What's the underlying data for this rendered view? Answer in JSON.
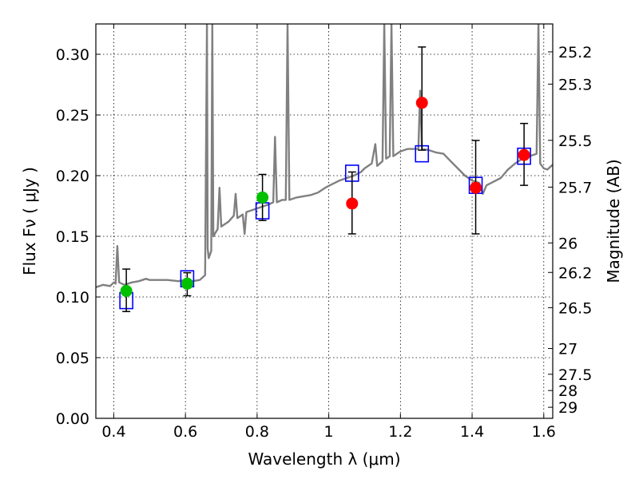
{
  "chart_data": {
    "type": "scatter",
    "xlabel": "Wavelength  λ (μm)",
    "ylabel": "Flux  Fν  ( μJy )",
    "ylabel_right": "Magnitude (AB)",
    "xlim": [
      0.35,
      1.625
    ],
    "ylim": [
      0.0,
      0.325
    ],
    "grid": true,
    "x_ticks": [
      {
        "value": 0.4,
        "label": "0.4"
      },
      {
        "value": 0.6,
        "label": "0.6"
      },
      {
        "value": 0.8,
        "label": "0.8"
      },
      {
        "value": 1.0,
        "label": "1"
      },
      {
        "value": 1.2,
        "label": "1.2"
      },
      {
        "value": 1.4,
        "label": "1.4"
      },
      {
        "value": 1.6,
        "label": "1.6"
      }
    ],
    "y_ticks": [
      {
        "value": 0.0,
        "label": "0.00"
      },
      {
        "value": 0.05,
        "label": "0.05"
      },
      {
        "value": 0.1,
        "label": "0.10"
      },
      {
        "value": 0.15,
        "label": "0.15"
      },
      {
        "value": 0.2,
        "label": "0.20"
      },
      {
        "value": 0.25,
        "label": "0.25"
      },
      {
        "value": 0.3,
        "label": "0.30"
      }
    ],
    "right_ticks": [
      {
        "mag": 25.2,
        "label": "25.2"
      },
      {
        "mag": 25.3,
        "label": "25.3"
      },
      {
        "mag": 25.5,
        "label": "25.5"
      },
      {
        "mag": 25.7,
        "label": "25.7"
      },
      {
        "mag": 26.0,
        "label": "26"
      },
      {
        "mag": 26.2,
        "label": "26.2"
      },
      {
        "mag": 26.5,
        "label": "26.5"
      },
      {
        "mag": 27.0,
        "label": "27"
      },
      {
        "mag": 27.5,
        "label": "27.5"
      },
      {
        "mag": 28.0,
        "label": "28"
      },
      {
        "mag": 29.0,
        "label": "29"
      }
    ],
    "colors": {
      "model": "#808080",
      "optical": "#00c000",
      "infrared": "#ff0000",
      "model_box": "#0000ff",
      "errorbar": "#000000"
    },
    "model_spectrum": [
      [
        0.35,
        0.108
      ],
      [
        0.37,
        0.11
      ],
      [
        0.39,
        0.109
      ],
      [
        0.4,
        0.112
      ],
      [
        0.405,
        0.111
      ],
      [
        0.41,
        0.142
      ],
      [
        0.415,
        0.112
      ],
      [
        0.43,
        0.11
      ],
      [
        0.45,
        0.112
      ],
      [
        0.47,
        0.113
      ],
      [
        0.49,
        0.115
      ],
      [
        0.5,
        0.114
      ],
      [
        0.52,
        0.114
      ],
      [
        0.55,
        0.114
      ],
      [
        0.58,
        0.113
      ],
      [
        0.6,
        0.114
      ],
      [
        0.62,
        0.113
      ],
      [
        0.64,
        0.114
      ],
      [
        0.655,
        0.118
      ],
      [
        0.66,
        0.325
      ],
      [
        0.662,
        0.14
      ],
      [
        0.665,
        0.132
      ],
      [
        0.672,
        0.138
      ],
      [
        0.675,
        0.325
      ],
      [
        0.678,
        0.15
      ],
      [
        0.69,
        0.156
      ],
      [
        0.695,
        0.19
      ],
      [
        0.7,
        0.158
      ],
      [
        0.72,
        0.162
      ],
      [
        0.735,
        0.167
      ],
      [
        0.74,
        0.185
      ],
      [
        0.745,
        0.165
      ],
      [
        0.76,
        0.168
      ],
      [
        0.765,
        0.152
      ],
      [
        0.77,
        0.17
      ],
      [
        0.79,
        0.172
      ],
      [
        0.81,
        0.174
      ],
      [
        0.83,
        0.176
      ],
      [
        0.845,
        0.178
      ],
      [
        0.85,
        0.232
      ],
      [
        0.855,
        0.178
      ],
      [
        0.87,
        0.18
      ],
      [
        0.88,
        0.18
      ],
      [
        0.885,
        0.325
      ],
      [
        0.89,
        0.18
      ],
      [
        0.91,
        0.182
      ],
      [
        0.93,
        0.183
      ],
      [
        0.95,
        0.184
      ],
      [
        0.97,
        0.186
      ],
      [
        0.99,
        0.19
      ],
      [
        1.01,
        0.193
      ],
      [
        1.03,
        0.196
      ],
      [
        1.05,
        0.198
      ],
      [
        1.07,
        0.2
      ],
      [
        1.09,
        0.203
      ],
      [
        1.1,
        0.206
      ],
      [
        1.12,
        0.21
      ],
      [
        1.13,
        0.226
      ],
      [
        1.135,
        0.208
      ],
      [
        1.15,
        0.212
      ],
      [
        1.155,
        0.325
      ],
      [
        1.16,
        0.214
      ],
      [
        1.17,
        0.216
      ],
      [
        1.175,
        0.325
      ],
      [
        1.18,
        0.216
      ],
      [
        1.19,
        0.218
      ],
      [
        1.2,
        0.22
      ],
      [
        1.21,
        0.221
      ],
      [
        1.22,
        0.222
      ],
      [
        1.23,
        0.222
      ],
      [
        1.25,
        0.222
      ],
      [
        1.255,
        0.27
      ],
      [
        1.26,
        0.222
      ],
      [
        1.28,
        0.221
      ],
      [
        1.3,
        0.219
      ],
      [
        1.32,
        0.218
      ],
      [
        1.34,
        0.212
      ],
      [
        1.36,
        0.206
      ],
      [
        1.38,
        0.2
      ],
      [
        1.4,
        0.196
      ],
      [
        1.42,
        0.194
      ],
      [
        1.43,
        0.185
      ],
      [
        1.44,
        0.192
      ],
      [
        1.46,
        0.195
      ],
      [
        1.48,
        0.198
      ],
      [
        1.5,
        0.205
      ],
      [
        1.52,
        0.21
      ],
      [
        1.54,
        0.214
      ],
      [
        1.56,
        0.216
      ],
      [
        1.58,
        0.218
      ],
      [
        1.585,
        0.325
      ],
      [
        1.59,
        0.21
      ],
      [
        1.6,
        0.206
      ],
      [
        1.61,
        0.205
      ],
      [
        1.625,
        0.209
      ]
    ],
    "model_boxes": [
      {
        "x": 0.435,
        "y": 0.097
      },
      {
        "x": 0.605,
        "y": 0.115
      },
      {
        "x": 0.815,
        "y": 0.171
      },
      {
        "x": 1.065,
        "y": 0.202
      },
      {
        "x": 1.26,
        "y": 0.218
      },
      {
        "x": 1.41,
        "y": 0.192
      },
      {
        "x": 1.545,
        "y": 0.216
      }
    ],
    "series": [
      {
        "group": "optical",
        "points": [
          {
            "x": 0.435,
            "y": 0.105,
            "err_low": 0.017,
            "err_high": 0.018
          },
          {
            "x": 0.605,
            "y": 0.111,
            "err_low": 0.01,
            "err_high": 0.009
          },
          {
            "x": 0.815,
            "y": 0.182,
            "err_low": 0.019,
            "err_high": 0.019
          }
        ]
      },
      {
        "group": "infrared",
        "points": [
          {
            "x": 1.065,
            "y": 0.177,
            "err_low": 0.025,
            "err_high": 0.026
          },
          {
            "x": 1.26,
            "y": 0.26,
            "err_low": 0.039,
            "err_high": 0.046
          },
          {
            "x": 1.41,
            "y": 0.19,
            "err_low": 0.038,
            "err_high": 0.039
          },
          {
            "x": 1.545,
            "y": 0.217,
            "err_low": 0.025,
            "err_high": 0.026
          }
        ]
      }
    ]
  }
}
